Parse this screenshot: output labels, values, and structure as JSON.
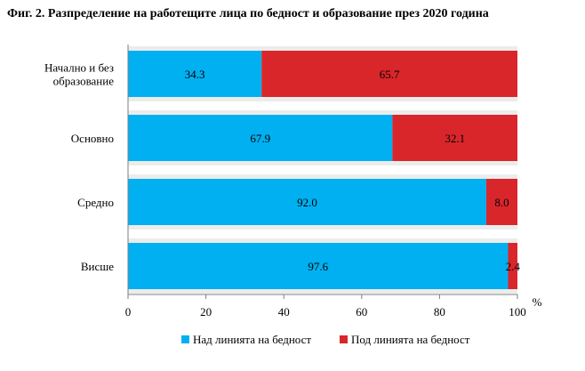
{
  "chart_data": {
    "type": "bar",
    "orientation": "horizontal",
    "stacked": true,
    "title": "Фиг. 2. Разпределение на работещите лица по бедност и образование през 2020 година",
    "categories": [
      "Начално и без образование",
      "Основно",
      "Средно",
      "Висше"
    ],
    "series": [
      {
        "name": "Над линията на бедност",
        "values": [
          34.3,
          67.9,
          92.0,
          97.6
        ],
        "labels": [
          "34.3",
          "67.9",
          "92.0",
          "97.6"
        ],
        "color": "#00b0f0"
      },
      {
        "name": "Под линията на бедност",
        "values": [
          65.7,
          32.1,
          8.0,
          2.4
        ],
        "labels": [
          "65.7",
          "32.1",
          "8.0",
          "2.4"
        ],
        "color": "#d9262b"
      }
    ],
    "xlim": [
      0,
      100
    ],
    "xticks": [
      "0",
      "20",
      "40",
      "60",
      "80",
      "100"
    ],
    "xunit": "%",
    "grid": false,
    "legend_position": "bottom"
  }
}
